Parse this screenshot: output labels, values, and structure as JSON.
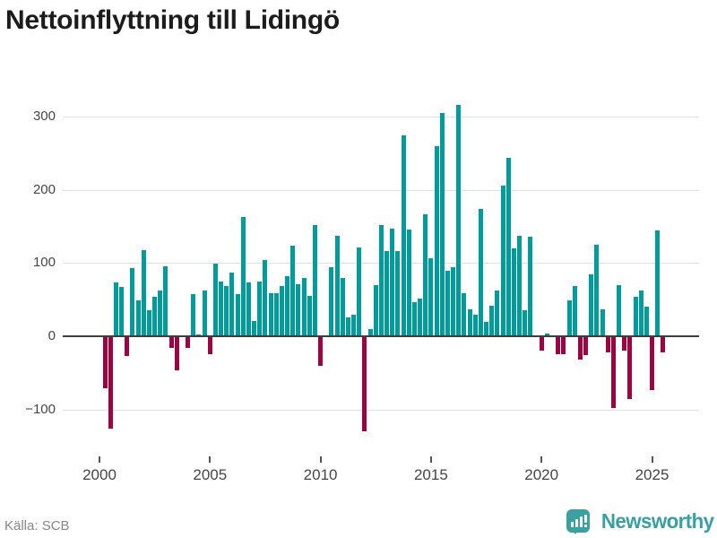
{
  "title": "Nettoinflyttning till Lidingö",
  "footer": {
    "source": "Källa: SCB",
    "brand": "Newsworthy"
  },
  "colors": {
    "positive": "#009c9c",
    "negative": "#9b0342",
    "brand": "#3aa0a0",
    "grid": "#e2e2e2",
    "zero_line": "#3d3d3d",
    "axis_text": "#454545",
    "source_text": "#878787",
    "title_text": "#1c1c1c"
  },
  "chart_data": {
    "type": "bar",
    "title": "Nettoinflyttning till Lidingö",
    "frequency": "quarterly",
    "x_start": "2000Q2",
    "x_end": "2025Q3",
    "values": [
      -71,
      -126,
      74,
      67,
      -27,
      93,
      49,
      117,
      36,
      54,
      63,
      96,
      -16,
      -46,
      0,
      -16,
      57,
      3,
      62,
      -24,
      99,
      75,
      69,
      87,
      57,
      163,
      74,
      21,
      75,
      104,
      59,
      59,
      69,
      82,
      124,
      71,
      79,
      55,
      152,
      -41,
      0,
      94,
      137,
      79,
      26,
      30,
      121,
      -130,
      10,
      70,
      152,
      116,
      147,
      116,
      274,
      146,
      46,
      51,
      166,
      107,
      260,
      305,
      89,
      94,
      316,
      59,
      37,
      29,
      174,
      20,
      42,
      63,
      206,
      244,
      120,
      137,
      36,
      136,
      0,
      -20,
      4,
      0,
      -25,
      -24,
      49,
      68,
      -32,
      -26,
      84,
      125,
      37,
      -22,
      -98,
      70,
      -20,
      -86,
      54,
      62,
      41,
      -74,
      145,
      -22
    ],
    "x_tick_labels": [
      "2000",
      "2005",
      "2010",
      "2015",
      "2020",
      "2025"
    ],
    "x_tick_years": [
      2000,
      2005,
      2010,
      2015,
      2020,
      2025
    ],
    "y_tick_labels": [
      "300",
      "200",
      "100",
      "0",
      "−100"
    ],
    "y_tick_values": [
      300,
      200,
      100,
      0,
      -100
    ],
    "ylim": [
      -150,
      330
    ],
    "grid": "horizontal",
    "legend": "none",
    "bar_color_positive": "#009c9c",
    "bar_color_negative": "#9b0342"
  }
}
